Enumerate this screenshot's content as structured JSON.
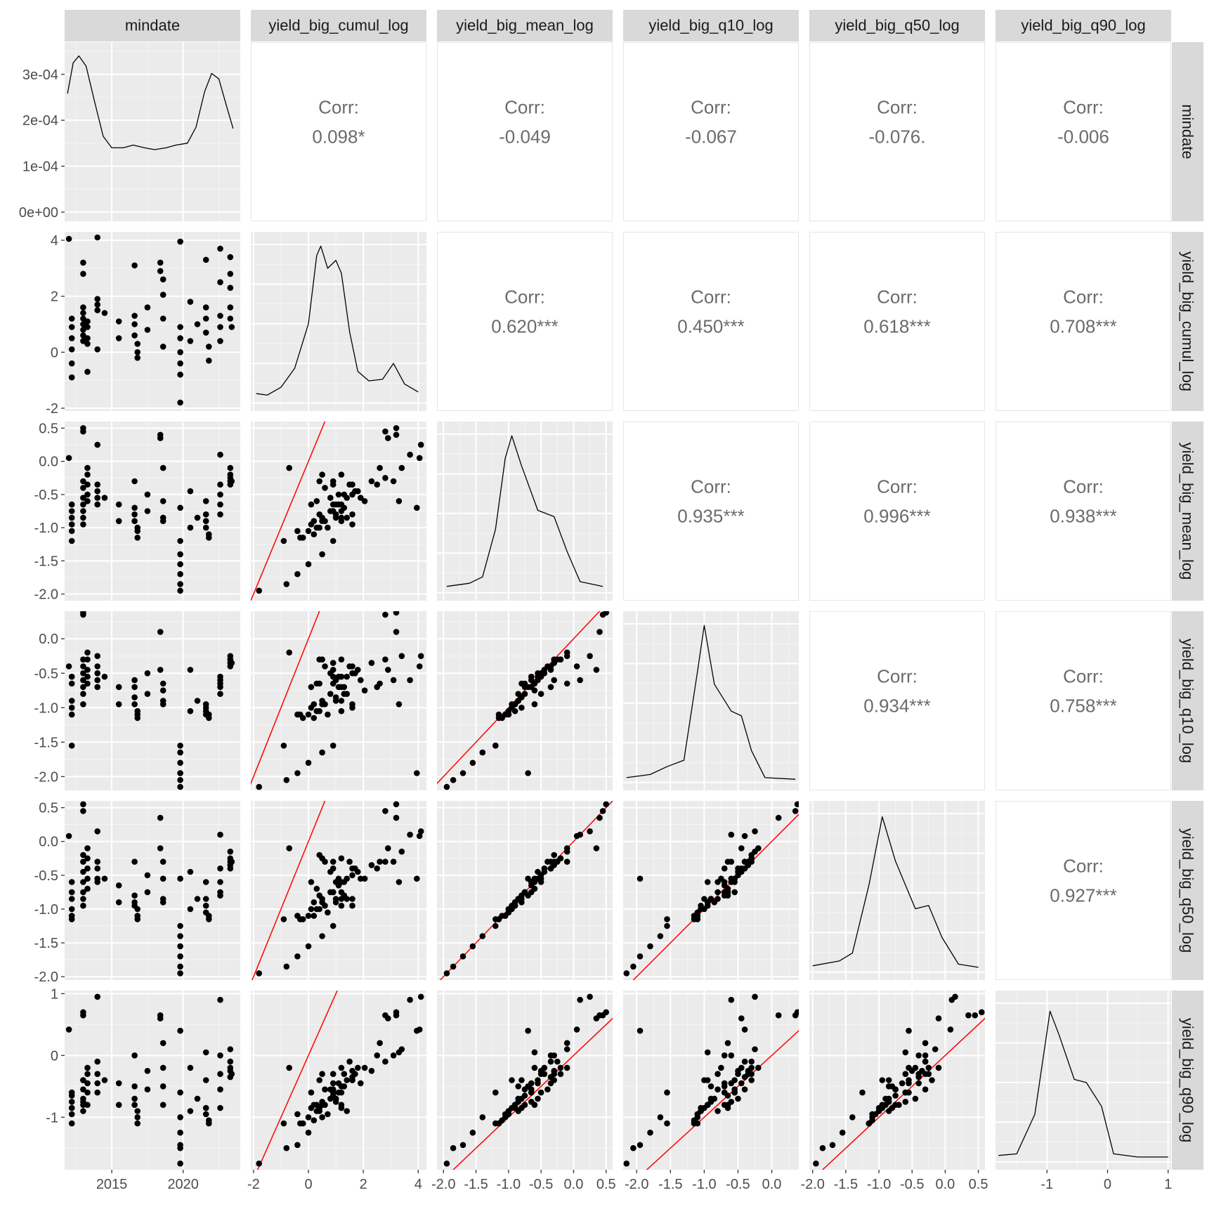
{
  "chart_data": {
    "type": "scatter",
    "variables": [
      "mindate",
      "yield_big_cumul_log",
      "yield_big_mean_log",
      "yield_big_q10_log",
      "yield_big_q50_log",
      "yield_big_q90_log"
    ],
    "axes": {
      "mindate": {
        "range": [
          2011.7,
          2024.0
        ],
        "ticks": [
          2015,
          2020
        ],
        "tick_labels": [
          "2015",
          "2020"
        ]
      },
      "yield_big_cumul_log": {
        "range": [
          -2.1,
          4.3
        ],
        "ticks": [
          -2,
          0,
          2,
          4
        ],
        "tick_labels": [
          "-2",
          "0",
          "2",
          "4"
        ]
      },
      "yield_big_mean_log": {
        "range": [
          -2.1,
          0.6
        ],
        "ticks": [
          -2.0,
          -1.5,
          -1.0,
          -0.5,
          0.0,
          0.5
        ],
        "tick_labels": [
          "-2.0",
          "-1.5",
          "-1.0",
          "-0.5",
          "0.0",
          "0.5"
        ]
      },
      "yield_big_q10_log": {
        "range": [
          -2.2,
          0.4
        ],
        "ticks": [
          -2.0,
          -1.5,
          -1.0,
          -0.5,
          0.0
        ],
        "tick_labels": [
          "-2.0",
          "-1.5",
          "-1.0",
          "-0.5",
          "0.0"
        ]
      },
      "yield_big_q50_log": {
        "range": [
          -2.05,
          0.6
        ],
        "ticks": [
          -2.0,
          -1.5,
          -1.0,
          -0.5,
          0.0,
          0.5
        ],
        "tick_labels": [
          "-2.0",
          "-1.5",
          "-1.0",
          "-0.5",
          "0.0",
          "0.5"
        ]
      },
      "yield_big_q90_log": {
        "range": [
          -1.85,
          1.05
        ],
        "ticks": [
          -1,
          0,
          1
        ],
        "tick_labels": [
          "-1",
          "0",
          "1"
        ]
      }
    },
    "density_axis": {
      "range": [
        -2e-05,
        0.00037
      ],
      "ticks": [
        0,
        0.0001,
        0.0002,
        0.0003
      ],
      "tick_labels": [
        "0e+00",
        "1e-04",
        "2e-04",
        "3e-04"
      ]
    },
    "densities": {
      "mindate": [
        [
          2011.9,
          0.000258
        ],
        [
          2012.3,
          0.000325
        ],
        [
          2012.7,
          0.00034
        ],
        [
          2013.2,
          0.000318
        ],
        [
          2013.8,
          0.00024
        ],
        [
          2014.4,
          0.000165
        ],
        [
          2015.0,
          0.00014
        ],
        [
          2015.8,
          0.00014
        ],
        [
          2016.5,
          0.000146
        ],
        [
          2017.3,
          0.00014
        ],
        [
          2018.0,
          0.000136
        ],
        [
          2018.8,
          0.00014
        ],
        [
          2019.5,
          0.000146
        ],
        [
          2020.3,
          0.00015
        ],
        [
          2020.9,
          0.000185
        ],
        [
          2021.5,
          0.000262
        ],
        [
          2022.0,
          0.000302
        ],
        [
          2022.5,
          0.00029
        ],
        [
          2023.0,
          0.000235
        ],
        [
          2023.5,
          0.000182
        ]
      ],
      "yield_big_cumul_log": [
        [
          -1.9,
          0.06
        ],
        [
          -1.5,
          0.05
        ],
        [
          -1.0,
          0.1
        ],
        [
          -0.5,
          0.22
        ],
        [
          0.0,
          0.5
        ],
        [
          0.3,
          0.93
        ],
        [
          0.45,
          0.99
        ],
        [
          0.7,
          0.85
        ],
        [
          1.0,
          0.9
        ],
        [
          1.2,
          0.82
        ],
        [
          1.5,
          0.45
        ],
        [
          1.8,
          0.2
        ],
        [
          2.2,
          0.14
        ],
        [
          2.7,
          0.15
        ],
        [
          3.1,
          0.25
        ],
        [
          3.5,
          0.12
        ],
        [
          4.0,
          0.07
        ]
      ],
      "yield_big_mean_log": [
        [
          -1.95,
          0.04
        ],
        [
          -1.6,
          0.06
        ],
        [
          -1.4,
          0.1
        ],
        [
          -1.2,
          0.4
        ],
        [
          -1.05,
          0.85
        ],
        [
          -0.95,
          0.99
        ],
        [
          -0.8,
          0.8
        ],
        [
          -0.55,
          0.52
        ],
        [
          -0.3,
          0.48
        ],
        [
          -0.1,
          0.26
        ],
        [
          0.1,
          0.07
        ],
        [
          0.45,
          0.04
        ]
      ],
      "yield_big_q10_log": [
        [
          -2.15,
          0.03
        ],
        [
          -1.8,
          0.05
        ],
        [
          -1.55,
          0.1
        ],
        [
          -1.3,
          0.14
        ],
        [
          -1.1,
          0.7
        ],
        [
          -1.0,
          0.99
        ],
        [
          -0.85,
          0.62
        ],
        [
          -0.6,
          0.45
        ],
        [
          -0.45,
          0.42
        ],
        [
          -0.3,
          0.2
        ],
        [
          -0.1,
          0.03
        ],
        [
          0.35,
          0.02
        ]
      ],
      "yield_big_q50_log": [
        [
          -2.0,
          0.04
        ],
        [
          -1.6,
          0.07
        ],
        [
          -1.4,
          0.12
        ],
        [
          -1.15,
          0.55
        ],
        [
          -0.95,
          0.98
        ],
        [
          -0.75,
          0.7
        ],
        [
          -0.45,
          0.4
        ],
        [
          -0.25,
          0.42
        ],
        [
          -0.05,
          0.22
        ],
        [
          0.2,
          0.05
        ],
        [
          0.5,
          0.03
        ]
      ],
      "yield_big_q90_log": [
        [
          -1.8,
          0.04
        ],
        [
          -1.5,
          0.05
        ],
        [
          -1.2,
          0.3
        ],
        [
          -0.95,
          0.95
        ],
        [
          -0.8,
          0.8
        ],
        [
          -0.55,
          0.52
        ],
        [
          -0.35,
          0.5
        ],
        [
          -0.1,
          0.35
        ],
        [
          0.1,
          0.05
        ],
        [
          0.5,
          0.03
        ],
        [
          1.0,
          0.03
        ]
      ]
    },
    "correlations": [
      {
        "row": "mindate",
        "col": "yield_big_cumul_log",
        "label": "Corr:",
        "value": "0.098*"
      },
      {
        "row": "mindate",
        "col": "yield_big_mean_log",
        "label": "Corr:",
        "value": "-0.049"
      },
      {
        "row": "mindate",
        "col": "yield_big_q10_log",
        "label": "Corr:",
        "value": "-0.067"
      },
      {
        "row": "mindate",
        "col": "yield_big_q50_log",
        "label": "Corr:",
        "value": "-0.076."
      },
      {
        "row": "mindate",
        "col": "yield_big_q90_log",
        "label": "Corr:",
        "value": "-0.006"
      },
      {
        "row": "yield_big_cumul_log",
        "col": "yield_big_mean_log",
        "label": "Corr:",
        "value": "0.620***"
      },
      {
        "row": "yield_big_cumul_log",
        "col": "yield_big_q10_log",
        "label": "Corr:",
        "value": "0.450***"
      },
      {
        "row": "yield_big_cumul_log",
        "col": "yield_big_q50_log",
        "label": "Corr:",
        "value": "0.618***"
      },
      {
        "row": "yield_big_cumul_log",
        "col": "yield_big_q90_log",
        "label": "Corr:",
        "value": "0.708***"
      },
      {
        "row": "yield_big_mean_log",
        "col": "yield_big_q10_log",
        "label": "Corr:",
        "value": "0.935***"
      },
      {
        "row": "yield_big_mean_log",
        "col": "yield_big_q50_log",
        "label": "Corr:",
        "value": "0.996***"
      },
      {
        "row": "yield_big_mean_log",
        "col": "yield_big_q90_log",
        "label": "Corr:",
        "value": "0.938***"
      },
      {
        "row": "yield_big_q10_log",
        "col": "yield_big_q50_log",
        "label": "Corr:",
        "value": "0.934***"
      },
      {
        "row": "yield_big_q10_log",
        "col": "yield_big_q90_log",
        "label": "Corr:",
        "value": "0.758***"
      },
      {
        "row": "yield_big_q50_log",
        "col": "yield_big_q90_log",
        "label": "Corr:",
        "value": "0.927***"
      }
    ],
    "reference_line": {
      "type": "identity",
      "slope": 1,
      "intercept": 0,
      "color": "#ff0000"
    },
    "point_color": "#000000",
    "panel_background": "#ebebeb",
    "strip_background": "#d9d9d9",
    "observations": [
      [
        2012.2,
        1.2,
        -0.65,
        -0.55,
        -0.6,
        -0.6
      ],
      [
        2012.2,
        0.9,
        -0.75,
        -0.65,
        -0.75,
        -0.65
      ],
      [
        2012.2,
        0.5,
        -0.85,
        -0.9,
        -0.85,
        -0.75
      ],
      [
        2012.2,
        0.1,
        -0.95,
        -1.0,
        -1.0,
        -0.85
      ],
      [
        2012.2,
        -0.4,
        -1.05,
        -1.1,
        -1.1,
        -0.95
      ],
      [
        2012.2,
        -0.9,
        -1.2,
        -1.55,
        -1.15,
        -1.1
      ],
      [
        2012.0,
        4.05,
        0.05,
        -0.4,
        0.08,
        0.42
      ],
      [
        2013.0,
        0.4,
        -0.3,
        -0.3,
        -0.2,
        -0.4
      ],
      [
        2013.0,
        0.6,
        -0.4,
        -0.4,
        -0.3,
        -0.55
      ],
      [
        2013.0,
        0.8,
        -0.55,
        -0.5,
        -0.45,
        -0.7
      ],
      [
        2013.0,
        1.0,
        -0.65,
        -0.6,
        -0.6,
        -0.75
      ],
      [
        2013.0,
        1.2,
        -0.75,
        -0.7,
        -0.75,
        -0.8
      ],
      [
        2013.0,
        1.4,
        -0.85,
        -0.8,
        -0.85,
        -0.9
      ],
      [
        2013.0,
        1.6,
        -0.95,
        -0.95,
        -0.95,
        -0.4
      ],
      [
        2013.0,
        2.8,
        0.45,
        0.35,
        0.45,
        0.65
      ],
      [
        2013.0,
        3.2,
        0.5,
        0.38,
        0.55,
        0.7
      ],
      [
        2013.3,
        -0.7,
        -0.1,
        -0.2,
        -0.1,
        -0.2
      ],
      [
        2013.3,
        0.5,
        -0.2,
        -0.3,
        -0.25,
        -0.3
      ],
      [
        2013.3,
        0.9,
        -0.35,
        -0.45,
        -0.4,
        -0.45
      ],
      [
        2013.3,
        1.1,
        -0.5,
        -0.55,
        -0.55,
        -0.6
      ],
      [
        2013.3,
        0.3,
        -0.6,
        -0.65,
        -0.7,
        -0.8
      ],
      [
        2014.0,
        4.1,
        0.25,
        -0.25,
        0.15,
        0.95
      ],
      [
        2014.0,
        1.5,
        -0.35,
        -0.4,
        -0.3,
        -0.1
      ],
      [
        2014.0,
        1.7,
        -0.45,
        -0.5,
        -0.4,
        -0.3
      ],
      [
        2014.0,
        1.9,
        -0.55,
        -0.6,
        -0.55,
        -0.45
      ],
      [
        2014.0,
        0.1,
        -0.65,
        -0.7,
        -0.6,
        -0.6
      ],
      [
        2016.6,
        3.1,
        -0.3,
        -0.6,
        -0.3,
        0.0
      ],
      [
        2016.6,
        1.3,
        -0.7,
        -0.7,
        -0.8,
        -0.5
      ],
      [
        2016.6,
        1.0,
        -0.8,
        -0.85,
        -0.9,
        -0.7
      ],
      [
        2016.6,
        0.6,
        -0.9,
        -0.95,
        -0.95,
        -0.8
      ],
      [
        2016.8,
        0.3,
        -1.0,
        -1.05,
        -1.0,
        -0.9
      ],
      [
        2016.8,
        0.0,
        -1.05,
        -1.1,
        -1.1,
        -1.0
      ],
      [
        2016.8,
        -0.2,
        -1.15,
        -1.15,
        -1.15,
        -1.1
      ],
      [
        2018.4,
        3.2,
        0.4,
        0.1,
        0.35,
        0.65
      ],
      [
        2018.4,
        2.9,
        0.35,
        -0.45,
        -0.1,
        0.6
      ],
      [
        2018.6,
        2.6,
        -0.1,
        -0.65,
        -0.3,
        0.2
      ],
      [
        2018.6,
        2.05,
        -0.6,
        -0.75,
        -0.55,
        -0.2
      ],
      [
        2018.6,
        1.2,
        -0.85,
        -0.9,
        -0.85,
        -0.5
      ],
      [
        2018.6,
        0.2,
        -0.9,
        -0.95,
        -0.9,
        -0.8
      ],
      [
        2019.8,
        3.95,
        -0.7,
        -1.95,
        -0.55,
        0.4
      ],
      [
        2019.8,
        0.9,
        -1.2,
        -1.55,
        -1.25,
        -0.6
      ],
      [
        2019.8,
        0.5,
        -1.4,
        -1.65,
        -1.4,
        -1.0
      ],
      [
        2019.8,
        0.0,
        -1.55,
        -1.8,
        -1.55,
        -1.25
      ],
      [
        2019.8,
        -0.4,
        -1.7,
        -1.95,
        -1.7,
        -1.45
      ],
      [
        2019.8,
        -0.8,
        -1.85,
        -2.05,
        -1.85,
        -1.5
      ],
      [
        2019.8,
        -1.8,
        -1.95,
        -2.15,
        -1.95,
        -1.75
      ],
      [
        2021.6,
        3.3,
        -0.6,
        -0.95,
        -0.6,
        0.05
      ],
      [
        2021.6,
        1.6,
        -0.8,
        -1.0,
        -0.85,
        -0.4
      ],
      [
        2021.6,
        1.2,
        -0.9,
        -1.05,
        -0.95,
        -0.85
      ],
      [
        2021.6,
        0.7,
        -1.0,
        -1.1,
        -1.05,
        -0.95
      ],
      [
        2021.8,
        0.2,
        -1.1,
        -1.15,
        -1.1,
        -1.05
      ],
      [
        2021.8,
        -0.3,
        -1.15,
        -1.1,
        -1.15,
        -1.1
      ],
      [
        2022.6,
        3.7,
        0.1,
        -0.6,
        0.1,
        0.9
      ],
      [
        2022.6,
        2.5,
        -0.35,
        -0.7,
        -0.4,
        0.0
      ],
      [
        2022.6,
        1.3,
        -0.5,
        -0.8,
        -0.6,
        -0.3
      ],
      [
        2022.6,
        0.9,
        -0.65,
        -0.55,
        -0.75,
        -0.55
      ],
      [
        2022.6,
        0.4,
        -0.8,
        -0.65,
        -0.8,
        -0.85
      ],
      [
        2023.3,
        3.4,
        -0.1,
        -0.25,
        -0.15,
        0.1
      ],
      [
        2023.3,
        2.8,
        -0.25,
        -0.3,
        -0.3,
        -0.1
      ],
      [
        2023.3,
        2.3,
        -0.3,
        -0.35,
        -0.35,
        -0.25
      ],
      [
        2023.3,
        1.6,
        -0.35,
        -0.4,
        -0.4,
        -0.35
      ],
      [
        2023.3,
        1.2,
        -0.2,
        -0.3,
        -0.25,
        -0.2
      ],
      [
        2023.4,
        0.9,
        -0.3,
        -0.35,
        -0.3,
        -0.3
      ],
      [
        2015.5,
        0.5,
        -0.9,
        -0.95,
        -0.9,
        -0.8
      ],
      [
        2015.5,
        1.1,
        -0.65,
        -0.7,
        -0.65,
        -0.45
      ],
      [
        2017.5,
        0.8,
        -0.75,
        -0.8,
        -0.75,
        -0.55
      ],
      [
        2017.5,
        1.6,
        -0.5,
        -0.5,
        -0.5,
        -0.25
      ],
      [
        2020.5,
        1.8,
        -0.45,
        -0.45,
        -0.45,
        -0.2
      ],
      [
        2020.5,
        0.4,
        -1.0,
        -1.05,
        -1.0,
        -0.9
      ],
      [
        2014.5,
        1.4,
        -0.55,
        -0.55,
        -0.55,
        -0.4
      ],
      [
        2021.0,
        1.0,
        -0.85,
        -0.9,
        -0.85,
        -0.7
      ]
    ]
  }
}
